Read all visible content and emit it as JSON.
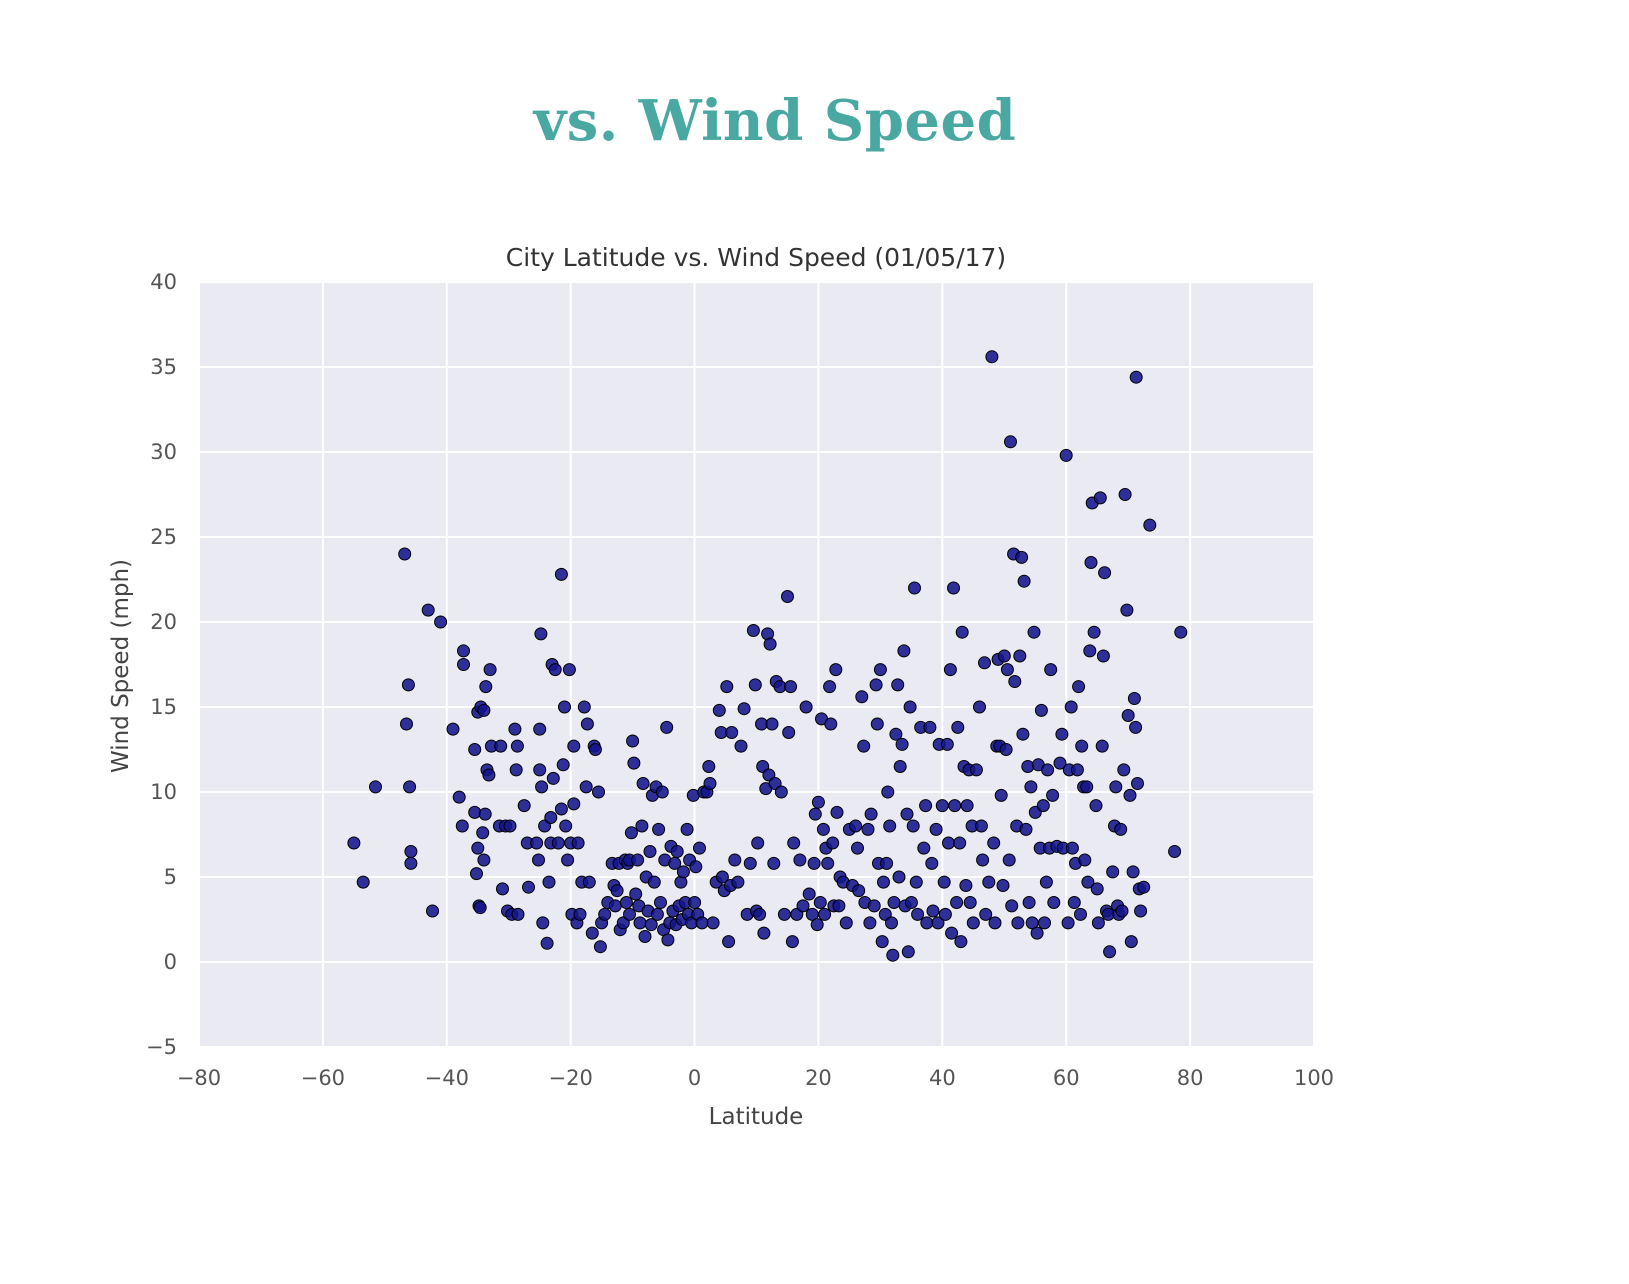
{
  "heading": "vs. Wind Speed",
  "colors": {
    "heading": "#4aa8a2",
    "plot_background": "#eaeaf2",
    "grid": "#ffffff",
    "marker": "#14148c"
  },
  "chart_data": {
    "type": "scatter",
    "title": "City Latitude vs. Wind Speed (01/05/17)",
    "xlabel": "Latitude",
    "ylabel": "Wind Speed (mph)",
    "xlim": [
      -80,
      100
    ],
    "ylim": [
      -5,
      40
    ],
    "xticks": [
      "−80",
      "−60",
      "−40",
      "−20",
      "0",
      "20",
      "40",
      "60",
      "80",
      "100"
    ],
    "yticks": [
      "−5",
      "0",
      "5",
      "10",
      "15",
      "20",
      "25",
      "30",
      "35",
      "40"
    ],
    "grid": true,
    "style": "seaborn-darkgrid",
    "points": [
      [
        -55,
        7
      ],
      [
        -53.5,
        4.7
      ],
      [
        -51.5,
        10.3
      ],
      [
        -46.8,
        24
      ],
      [
        -46.5,
        14
      ],
      [
        -46.2,
        16.3
      ],
      [
        -46,
        10.3
      ],
      [
        -45.8,
        6.5
      ],
      [
        -45.8,
        5.8
      ],
      [
        -43,
        20.7
      ],
      [
        -42.3,
        3
      ],
      [
        -41,
        20
      ],
      [
        -39,
        13.7
      ],
      [
        -38,
        9.7
      ],
      [
        -37.5,
        8
      ],
      [
        -37.3,
        17.5
      ],
      [
        -37.3,
        18.3
      ],
      [
        -35.5,
        12.5
      ],
      [
        -35.5,
        8.8
      ],
      [
        -35.2,
        5.2
      ],
      [
        -35,
        14.7
      ],
      [
        -35,
        6.7
      ],
      [
        -34.8,
        3.3
      ],
      [
        -34.6,
        3.2
      ],
      [
        -34.5,
        15
      ],
      [
        -34.2,
        7.6
      ],
      [
        -34,
        14.8
      ],
      [
        -34,
        6
      ],
      [
        -33.8,
        8.7
      ],
      [
        -33.7,
        16.2
      ],
      [
        -33.5,
        11.3
      ],
      [
        -33.2,
        11
      ],
      [
        -33,
        17.2
      ],
      [
        -32.8,
        12.7
      ],
      [
        -31.5,
        8
      ],
      [
        -31.3,
        12.7
      ],
      [
        -31,
        4.3
      ],
      [
        -30.5,
        8
      ],
      [
        -30.2,
        3
      ],
      [
        -29.8,
        8
      ],
      [
        -29.5,
        2.8
      ],
      [
        -29,
        13.7
      ],
      [
        -28.8,
        11.3
      ],
      [
        -28.6,
        12.7
      ],
      [
        -28.5,
        2.8
      ],
      [
        -27.5,
        9.2
      ],
      [
        -27,
        7
      ],
      [
        -26.8,
        4.4
      ],
      [
        -25.5,
        7
      ],
      [
        -25.2,
        6
      ],
      [
        -25,
        13.7
      ],
      [
        -25,
        11.3
      ],
      [
        -24.8,
        19.3
      ],
      [
        -24.7,
        10.3
      ],
      [
        -24.5,
        2.3
      ],
      [
        -24.2,
        8
      ],
      [
        -23.8,
        1.1
      ],
      [
        -23.5,
        4.7
      ],
      [
        -23.2,
        7
      ],
      [
        -23.2,
        8.5
      ],
      [
        -23,
        17.5
      ],
      [
        -22.8,
        10.8
      ],
      [
        -22.5,
        17.2
      ],
      [
        -22,
        7
      ],
      [
        -21.5,
        22.8
      ],
      [
        -21.5,
        9
      ],
      [
        -21.2,
        11.6
      ],
      [
        -21,
        15
      ],
      [
        -20.8,
        8
      ],
      [
        -20.5,
        6
      ],
      [
        -20.2,
        17.2
      ],
      [
        -20,
        7
      ],
      [
        -19.8,
        2.8
      ],
      [
        -19.5,
        9.3
      ],
      [
        -19.5,
        12.7
      ],
      [
        -19,
        2.3
      ],
      [
        -18.8,
        7
      ],
      [
        -18.5,
        2.8
      ],
      [
        -18.2,
        4.7
      ],
      [
        -17.8,
        15
      ],
      [
        -17.5,
        10.3
      ],
      [
        -17.3,
        14
      ],
      [
        -17,
        4.7
      ],
      [
        -16.5,
        1.7
      ],
      [
        -16.2,
        12.7
      ],
      [
        -16,
        12.5
      ],
      [
        -15.5,
        10
      ],
      [
        -15.2,
        0.9
      ],
      [
        -15,
        2.3
      ],
      [
        -14.5,
        2.8
      ],
      [
        -14,
        3.5
      ],
      [
        -13.3,
        5.8
      ],
      [
        -13,
        4.5
      ],
      [
        -12.8,
        3.3
      ],
      [
        -12.5,
        4.2
      ],
      [
        -12.2,
        5.8
      ],
      [
        -12,
        1.9
      ],
      [
        -11.5,
        2.3
      ],
      [
        -11.2,
        6
      ],
      [
        -11,
        3.5
      ],
      [
        -10.8,
        5.8
      ],
      [
        -10.5,
        2.8
      ],
      [
        -10.5,
        6
      ],
      [
        -10.2,
        7.6
      ],
      [
        -10,
        13
      ],
      [
        -9.8,
        11.7
      ],
      [
        -9.5,
        4
      ],
      [
        -9.2,
        6
      ],
      [
        -9,
        3.3
      ],
      [
        -8.8,
        2.3
      ],
      [
        -8.5,
        8
      ],
      [
        -8.3,
        10.5
      ],
      [
        -8,
        1.5
      ],
      [
        -7.8,
        5
      ],
      [
        -7.5,
        3
      ],
      [
        -7.2,
        6.5
      ],
      [
        -7,
        2.2
      ],
      [
        -6.8,
        9.8
      ],
      [
        -6.5,
        4.7
      ],
      [
        -6.2,
        10.3
      ],
      [
        -6,
        2.8
      ],
      [
        -5.8,
        7.8
      ],
      [
        -5.5,
        3.5
      ],
      [
        -5.2,
        10
      ],
      [
        -5,
        1.9
      ],
      [
        -4.8,
        6
      ],
      [
        -4.5,
        13.8
      ],
      [
        -4.3,
        1.3
      ],
      [
        -4,
        2.3
      ],
      [
        -3.8,
        6.8
      ],
      [
        -3.5,
        3
      ],
      [
        -3.2,
        5.8
      ],
      [
        -3,
        2.2
      ],
      [
        -2.8,
        6.5
      ],
      [
        -2.5,
        3.3
      ],
      [
        -2.2,
        4.7
      ],
      [
        -2,
        2.5
      ],
      [
        -1.8,
        5.3
      ],
      [
        -1.5,
        3.5
      ],
      [
        -1.2,
        7.8
      ],
      [
        -1,
        2.8
      ],
      [
        -0.8,
        6
      ],
      [
        -0.5,
        2.3
      ],
      [
        -0.2,
        9.8
      ],
      [
        0,
        3.5
      ],
      [
        0.2,
        5.6
      ],
      [
        0.5,
        2.8
      ],
      [
        0.8,
        6.7
      ],
      [
        1.2,
        2.3
      ],
      [
        1.5,
        10
      ],
      [
        2,
        10
      ],
      [
        2.3,
        11.5
      ],
      [
        2.5,
        10.5
      ],
      [
        3,
        2.3
      ],
      [
        3.5,
        4.7
      ],
      [
        4,
        14.8
      ],
      [
        4.3,
        13.5
      ],
      [
        4.5,
        5
      ],
      [
        4.8,
        4.2
      ],
      [
        5.2,
        16.2
      ],
      [
        5.5,
        1.2
      ],
      [
        5.8,
        4.5
      ],
      [
        6,
        13.5
      ],
      [
        6.5,
        6
      ],
      [
        7,
        4.7
      ],
      [
        7.5,
        12.7
      ],
      [
        8,
        14.9
      ],
      [
        8.5,
        2.8
      ],
      [
        9,
        5.8
      ],
      [
        9.5,
        19.5
      ],
      [
        9.8,
        16.3
      ],
      [
        10,
        3
      ],
      [
        10.2,
        7
      ],
      [
        10.5,
        2.8
      ],
      [
        10.8,
        14
      ],
      [
        11,
        11.5
      ],
      [
        11.2,
        1.7
      ],
      [
        11.5,
        10.2
      ],
      [
        11.8,
        19.3
      ],
      [
        12,
        11
      ],
      [
        12.2,
        18.7
      ],
      [
        12.5,
        14
      ],
      [
        12.8,
        5.8
      ],
      [
        13,
        10.5
      ],
      [
        13.2,
        16.5
      ],
      [
        13.8,
        16.2
      ],
      [
        14,
        10
      ],
      [
        14.5,
        2.8
      ],
      [
        15,
        21.5
      ],
      [
        15.2,
        13.5
      ],
      [
        15.5,
        16.2
      ],
      [
        15.8,
        1.2
      ],
      [
        16,
        7
      ],
      [
        16.5,
        2.8
      ],
      [
        17,
        6
      ],
      [
        17.5,
        3.3
      ],
      [
        18,
        15
      ],
      [
        18.5,
        4
      ],
      [
        19,
        2.8
      ],
      [
        19.3,
        5.8
      ],
      [
        19.5,
        8.7
      ],
      [
        19.8,
        2.2
      ],
      [
        20,
        9.4
      ],
      [
        20.3,
        3.5
      ],
      [
        20.5,
        14.3
      ],
      [
        20.8,
        7.8
      ],
      [
        21,
        2.8
      ],
      [
        21.2,
        6.7
      ],
      [
        21.5,
        5.8
      ],
      [
        21.8,
        16.2
      ],
      [
        22,
        14
      ],
      [
        22.3,
        7
      ],
      [
        22.5,
        3.3
      ],
      [
        22.8,
        17.2
      ],
      [
        23,
        8.8
      ],
      [
        23.3,
        3.3
      ],
      [
        23.5,
        5
      ],
      [
        24,
        4.7
      ],
      [
        24.5,
        2.3
      ],
      [
        25,
        7.8
      ],
      [
        25.5,
        4.5
      ],
      [
        26,
        8
      ],
      [
        26.3,
        6.7
      ],
      [
        26.5,
        4.2
      ],
      [
        27,
        15.6
      ],
      [
        27.3,
        12.7
      ],
      [
        27.5,
        3.5
      ],
      [
        28,
        7.8
      ],
      [
        28.3,
        2.3
      ],
      [
        28.5,
        8.7
      ],
      [
        29,
        3.3
      ],
      [
        29.3,
        16.3
      ],
      [
        29.5,
        14
      ],
      [
        29.7,
        5.8
      ],
      [
        30,
        17.2
      ],
      [
        30.3,
        1.2
      ],
      [
        30.5,
        4.7
      ],
      [
        30.8,
        2.8
      ],
      [
        31,
        5.8
      ],
      [
        31.2,
        10
      ],
      [
        31.5,
        8
      ],
      [
        31.8,
        2.3
      ],
      [
        32,
        0.4
      ],
      [
        32.2,
        3.5
      ],
      [
        32.5,
        13.4
      ],
      [
        32.8,
        16.3
      ],
      [
        33,
        5
      ],
      [
        33.2,
        11.5
      ],
      [
        33.5,
        12.8
      ],
      [
        33.8,
        18.3
      ],
      [
        34,
        3.3
      ],
      [
        34.3,
        8.7
      ],
      [
        34.5,
        0.6
      ],
      [
        34.8,
        15
      ],
      [
        35,
        3.5
      ],
      [
        35.3,
        8
      ],
      [
        35.5,
        22
      ],
      [
        35.8,
        4.7
      ],
      [
        36,
        2.8
      ],
      [
        36.5,
        13.8
      ],
      [
        37,
        6.7
      ],
      [
        37.3,
        9.2
      ],
      [
        37.5,
        2.3
      ],
      [
        38,
        13.8
      ],
      [
        38.3,
        5.8
      ],
      [
        38.5,
        3
      ],
      [
        39,
        7.8
      ],
      [
        39.3,
        2.3
      ],
      [
        39.5,
        12.8
      ],
      [
        40,
        9.2
      ],
      [
        40.3,
        4.7
      ],
      [
        40.5,
        2.8
      ],
      [
        40.8,
        12.8
      ],
      [
        41,
        7
      ],
      [
        41.3,
        17.2
      ],
      [
        41.5,
        1.7
      ],
      [
        41.8,
        22
      ],
      [
        42,
        9.2
      ],
      [
        42.3,
        3.5
      ],
      [
        42.5,
        13.8
      ],
      [
        42.8,
        7
      ],
      [
        43,
        1.2
      ],
      [
        43.2,
        19.4
      ],
      [
        43.5,
        11.5
      ],
      [
        43.8,
        4.5
      ],
      [
        44,
        9.2
      ],
      [
        44.3,
        11.3
      ],
      [
        44.5,
        3.5
      ],
      [
        44.8,
        8
      ],
      [
        45,
        2.3
      ],
      [
        45.5,
        11.3
      ],
      [
        46,
        15
      ],
      [
        46.3,
        8
      ],
      [
        46.5,
        6
      ],
      [
        46.8,
        17.6
      ],
      [
        47,
        2.8
      ],
      [
        47.5,
        4.7
      ],
      [
        48,
        35.6
      ],
      [
        48.3,
        7
      ],
      [
        48.5,
        2.3
      ],
      [
        48.8,
        12.7
      ],
      [
        49,
        17.8
      ],
      [
        49.3,
        12.7
      ],
      [
        49.5,
        9.8
      ],
      [
        49.8,
        4.5
      ],
      [
        50,
        18
      ],
      [
        50.3,
        12.5
      ],
      [
        50.5,
        17.2
      ],
      [
        50.8,
        6
      ],
      [
        51,
        30.6
      ],
      [
        51.2,
        3.3
      ],
      [
        51.5,
        24
      ],
      [
        51.7,
        16.5
      ],
      [
        52,
        8
      ],
      [
        52.2,
        2.3
      ],
      [
        52.5,
        18
      ],
      [
        52.8,
        23.8
      ],
      [
        53,
        13.4
      ],
      [
        53.2,
        22.4
      ],
      [
        53.5,
        7.8
      ],
      [
        53.8,
        11.5
      ],
      [
        54,
        3.5
      ],
      [
        54.3,
        10.3
      ],
      [
        54.5,
        2.3
      ],
      [
        54.8,
        19.4
      ],
      [
        55,
        8.8
      ],
      [
        55.3,
        1.7
      ],
      [
        55.5,
        11.6
      ],
      [
        55.8,
        6.7
      ],
      [
        56,
        14.8
      ],
      [
        56.3,
        9.2
      ],
      [
        56.5,
        2.3
      ],
      [
        56.8,
        4.7
      ],
      [
        57,
        11.3
      ],
      [
        57.3,
        6.7
      ],
      [
        57.5,
        17.2
      ],
      [
        57.8,
        9.8
      ],
      [
        58,
        3.5
      ],
      [
        58.5,
        6.8
      ],
      [
        59,
        11.7
      ],
      [
        59.3,
        13.4
      ],
      [
        59.5,
        6.7
      ],
      [
        60,
        29.8
      ],
      [
        60.3,
        2.3
      ],
      [
        60.5,
        11.3
      ],
      [
        60.8,
        15
      ],
      [
        61,
        6.7
      ],
      [
        61.3,
        3.5
      ],
      [
        61.5,
        5.8
      ],
      [
        61.8,
        11.3
      ],
      [
        62,
        16.2
      ],
      [
        62.3,
        2.8
      ],
      [
        62.5,
        12.7
      ],
      [
        62.8,
        10.3
      ],
      [
        63,
        6
      ],
      [
        63.3,
        10.3
      ],
      [
        63.5,
        4.7
      ],
      [
        63.8,
        18.3
      ],
      [
        64,
        23.5
      ],
      [
        64.2,
        27
      ],
      [
        64.5,
        19.4
      ],
      [
        64.8,
        9.2
      ],
      [
        65,
        4.3
      ],
      [
        65.2,
        2.3
      ],
      [
        65.5,
        27.3
      ],
      [
        65.8,
        12.7
      ],
      [
        66,
        18
      ],
      [
        66.2,
        22.9
      ],
      [
        66.5,
        3
      ],
      [
        66.8,
        2.8
      ],
      [
        67,
        0.6
      ],
      [
        67.5,
        5.3
      ],
      [
        67.8,
        8
      ],
      [
        68,
        10.3
      ],
      [
        68.3,
        3.3
      ],
      [
        68.5,
        2.8
      ],
      [
        68.8,
        7.8
      ],
      [
        69,
        3
      ],
      [
        69.3,
        11.3
      ],
      [
        69.5,
        27.5
      ],
      [
        69.8,
        20.7
      ],
      [
        70,
        14.5
      ],
      [
        70.3,
        9.8
      ],
      [
        70.5,
        1.2
      ],
      [
        70.8,
        5.3
      ],
      [
        71,
        15.5
      ],
      [
        71.2,
        13.8
      ],
      [
        71.3,
        34.4
      ],
      [
        71.5,
        10.5
      ],
      [
        71.8,
        4.3
      ],
      [
        72,
        3
      ],
      [
        72.5,
        4.4
      ],
      [
        73.5,
        25.7
      ],
      [
        77.5,
        6.5
      ],
      [
        78.5,
        19.4
      ]
    ]
  }
}
